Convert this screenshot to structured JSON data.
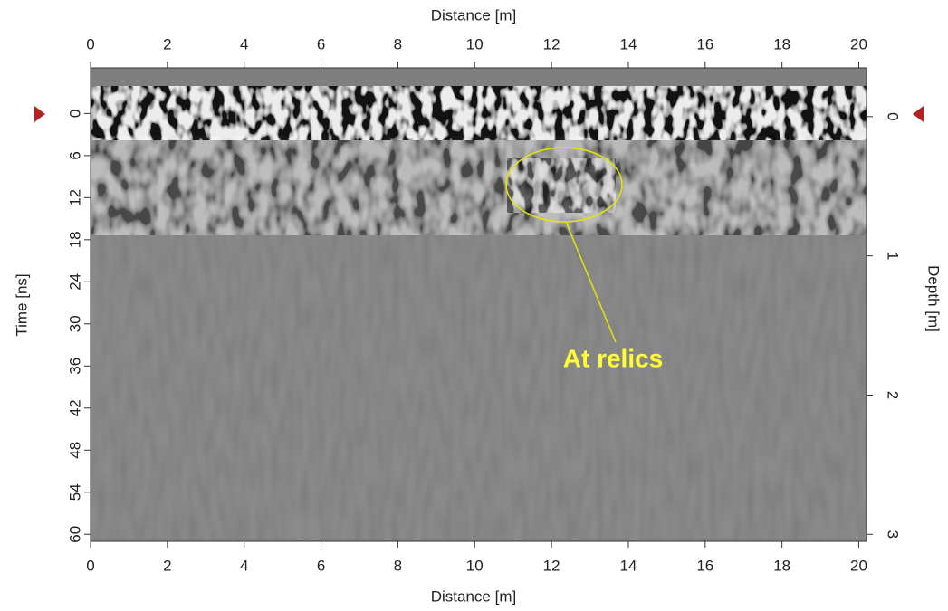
{
  "chart_data": {
    "type": "radargram",
    "x_label": "Distance [m]",
    "y_label": "Time [ns]",
    "y2_label": "Depth [m]",
    "xlim": [
      0,
      20.2
    ],
    "xticks": [
      0,
      2,
      4,
      6,
      8,
      10,
      12,
      14,
      16,
      18,
      20
    ],
    "ylim": [
      -6.5,
      61
    ],
    "yticks": [
      0,
      6,
      12,
      18,
      24,
      30,
      36,
      42,
      48,
      54,
      60
    ],
    "y2lim": [
      -0.35,
      3.05
    ],
    "y2ticks": [
      0,
      1,
      2,
      3
    ],
    "y_inverted": true,
    "annotation": "At relics",
    "annotation_color": "#ffff33"
  }
}
